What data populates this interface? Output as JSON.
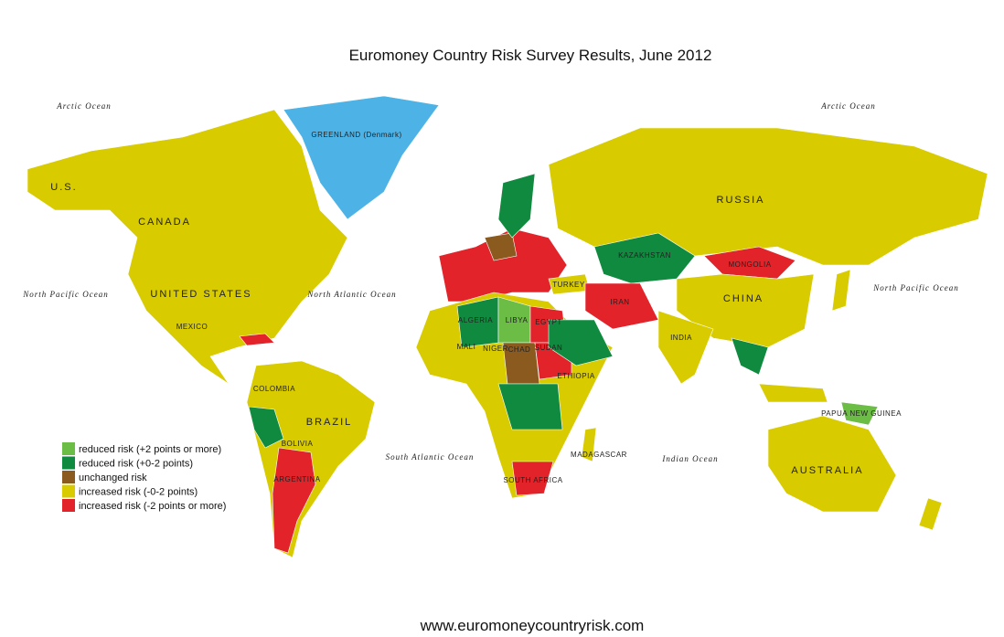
{
  "title": "Euromoney Country Risk Survey Results, June 2012",
  "footer": "www.euromoneycountryrisk.com",
  "legend": [
    {
      "label": "reduced risk (+2 points or more)",
      "color": "#6cbd45"
    },
    {
      "label": "reduced risk (+0-2 points)",
      "color": "#0f8a3e"
    },
    {
      "label": "unchanged risk",
      "color": "#8b5a1f"
    },
    {
      "label": "increased risk (-0-2 points)",
      "color": "#d8cb00"
    },
    {
      "label": "increased risk (-2 points or more)",
      "color": "#e2232a"
    }
  ],
  "oceans": [
    "Arctic Ocean",
    "Arctic Ocean",
    "North Pacific Ocean",
    "North Atlantic Ocean",
    "South Atlantic Ocean",
    "Indian Ocean",
    "North Pacific Ocean"
  ],
  "countries": [
    "U.S.",
    "CANADA",
    "UNITED STATES",
    "GREENLAND (Denmark)",
    "RUSSIA",
    "CHINA",
    "KAZAKHSTAN",
    "MONGOLIA",
    "INDIA",
    "BRAZIL",
    "ARGENTINA",
    "AUSTRALIA",
    "ALGERIA",
    "LIBYA",
    "EGYPT",
    "MALI",
    "NIGER",
    "CHAD",
    "SUDAN",
    "ETHIOPIA",
    "MEXICO",
    "BOLIVIA",
    "IRAN",
    "TURKEY",
    "SOUTH AFRICA",
    "PAPUA NEW GUINEA",
    "MADAGASCAR",
    "COLOMBIA"
  ]
}
